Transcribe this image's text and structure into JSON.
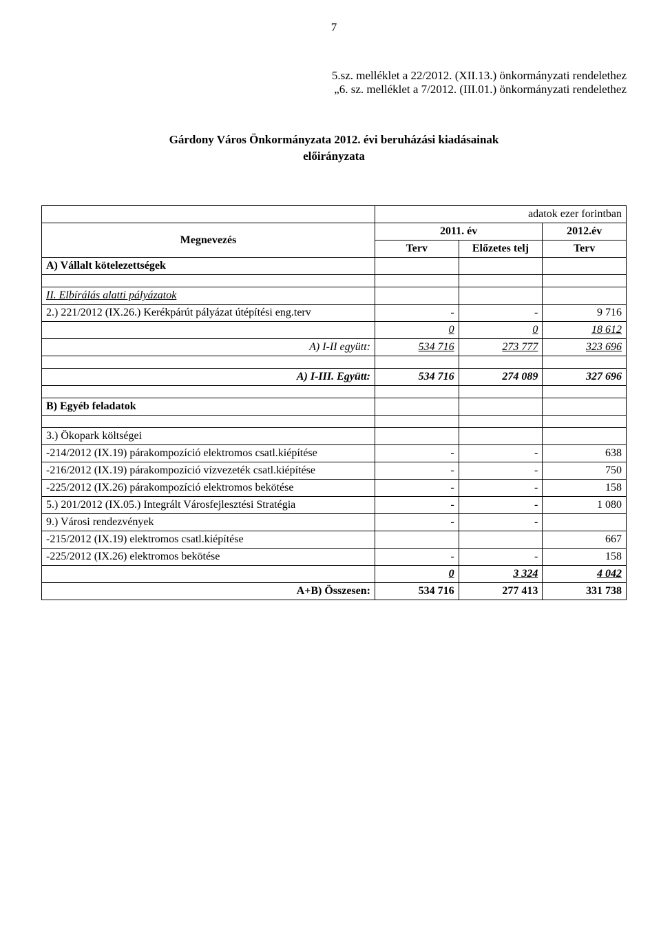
{
  "meta": {
    "page_number": "7",
    "header_line1": "5.sz. melléklet a 22/2012. (XII.13.) önkormányzati rendelethez",
    "header_line2": "„6. sz. melléklet a 7/2012. (III.01.) önkormányzati rendelethez",
    "title_line1": "Gárdony Város Önkormányzata 2012. évi beruházási kiadásainak",
    "title_line2": "előirányzata"
  },
  "table": {
    "band_label": "adatok ezer forintban",
    "col_desc": "Megnevezés",
    "col_y1": "2011. év",
    "col_y2": "2012.év",
    "sub_terv": "Terv",
    "sub_elozetes": "Előzetes telj",
    "sub_terv2": "Terv"
  },
  "sections": {
    "a_heading": "A) Vállalt kötelezettségek",
    "ii_heading": "II. Elbírálás alatti pályázatok",
    "b_heading": "B) Egyéb feladatok"
  },
  "rows": {
    "r1": {
      "desc": "2.) 221/2012 (IX.26.) Kerékpárút pályázat útépítési eng.terv",
      "c1": "-",
      "c2": "-",
      "c3": "9 716"
    },
    "r2": {
      "desc": "",
      "c1": "0",
      "c2": "0",
      "c3": "18 612"
    },
    "r3": {
      "desc": "A) I-II együtt:",
      "c1": "534 716",
      "c2": "273 777",
      "c3": "323 696"
    },
    "r4": {
      "desc": "A) I-III. Együtt:",
      "c1": "534 716",
      "c2": "274 089",
      "c3": "327 696"
    },
    "r5": {
      "desc": "3.) Ökopark költségei",
      "c1": "",
      "c2": "",
      "c3": ""
    },
    "r6": {
      "desc": "  -214/2012 (IX.19) párakompozíció elektromos csatl.kiépítése",
      "c1": "-",
      "c2": "-",
      "c3": "638"
    },
    "r7": {
      "desc": "  -216/2012 (IX.19) párakompozíció vízvezeték csatl.kiépítése",
      "c1": "-",
      "c2": "-",
      "c3": "750"
    },
    "r8": {
      "desc": "  -225/2012 (IX.26) párakompozíció elektromos bekötése",
      "c1": "-",
      "c2": "-",
      "c3": "158"
    },
    "r9": {
      "desc": "5.) 201/2012 (IX.05.) Integrált Városfejlesztési Stratégia",
      "c1": "-",
      "c2": "-",
      "c3": "1 080"
    },
    "r10": {
      "desc": "9.) Városi rendezvények",
      "c1": "-",
      "c2": "-",
      "c3": ""
    },
    "r11": {
      "desc": "     -215/2012 (IX.19) elektromos csatl.kiépítése",
      "c1": "",
      "c2": "",
      "c3": "667"
    },
    "r12": {
      "desc": "  -225/2012 (IX.26) elektromos bekötése",
      "c1": "-",
      "c2": "-",
      "c3": "158"
    },
    "r13": {
      "desc": "",
      "c1": "0",
      "c2": "3 324",
      "c3": "4 042"
    },
    "r14": {
      "desc": "A+B) Összesen:",
      "c1": "534 716",
      "c2": "277 413",
      "c3": "331 738"
    }
  },
  "style": {
    "font_family": "Times New Roman",
    "font_size_pt": 12,
    "text_color": "#000000",
    "background_color": "#ffffff",
    "border_color": "#000000"
  }
}
